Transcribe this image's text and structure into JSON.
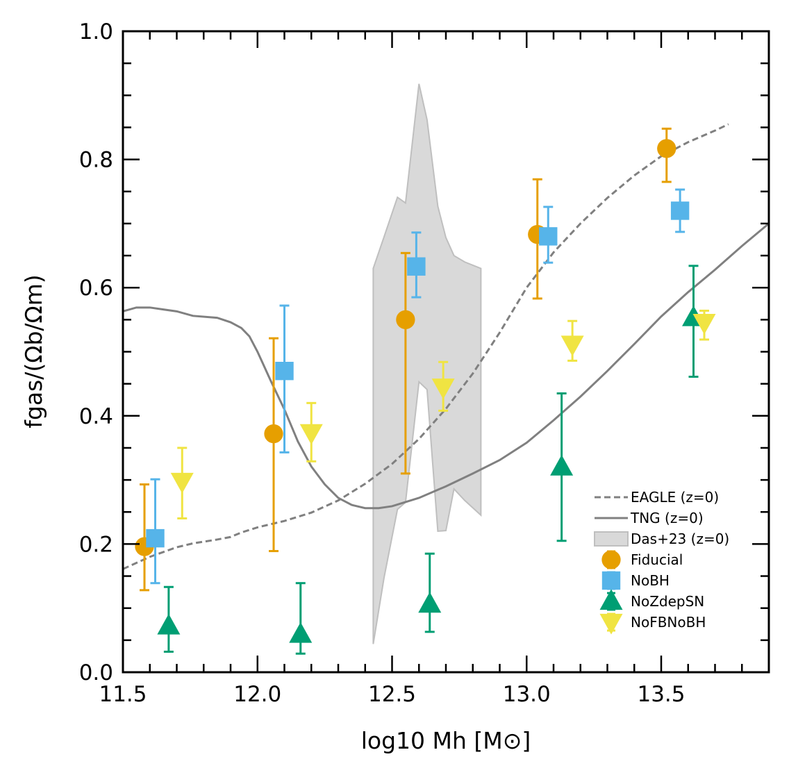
{
  "chart_data": {
    "type": "scatter",
    "xlabel": "log10 Mh [M⊙]",
    "ylabel": "fgas/(Ωb/Ωm)",
    "xlim": [
      11.5,
      13.9
    ],
    "ylim": [
      0.0,
      1.0
    ],
    "x_ticks": [
      "11.5",
      "12.0",
      "12.5",
      "13.0",
      "13.5"
    ],
    "y_ticks": [
      "0.0",
      "0.2",
      "0.4",
      "0.6",
      "0.8",
      "1.0"
    ],
    "grid": false,
    "legend_position": "lower-right",
    "series": [
      {
        "name": "Fiducial",
        "marker": "circle",
        "color": "#E69F00",
        "points": [
          {
            "x": 11.58,
            "y": 0.196,
            "lo": 0.128,
            "hi": 0.293
          },
          {
            "x": 12.06,
            "y": 0.372,
            "lo": 0.189,
            "hi": 0.521
          },
          {
            "x": 12.55,
            "y": 0.55,
            "lo": 0.31,
            "hi": 0.654
          },
          {
            "x": 13.04,
            "y": 0.683,
            "lo": 0.583,
            "hi": 0.769
          },
          {
            "x": 13.52,
            "y": 0.817,
            "lo": 0.765,
            "hi": 0.848
          }
        ]
      },
      {
        "name": "NoBH",
        "marker": "square",
        "color": "#56B4E9",
        "points": [
          {
            "x": 11.62,
            "y": 0.209,
            "lo": 0.139,
            "hi": 0.301
          },
          {
            "x": 12.1,
            "y": 0.47,
            "lo": 0.343,
            "hi": 0.572
          },
          {
            "x": 12.59,
            "y": 0.633,
            "lo": 0.585,
            "hi": 0.686
          },
          {
            "x": 13.08,
            "y": 0.68,
            "lo": 0.639,
            "hi": 0.726
          },
          {
            "x": 13.57,
            "y": 0.72,
            "lo": 0.687,
            "hi": 0.753
          }
        ]
      },
      {
        "name": "NoZdepSN",
        "marker": "triangle-up",
        "color": "#009E73",
        "points": [
          {
            "x": 11.67,
            "y": 0.072,
            "lo": 0.032,
            "hi": 0.133
          },
          {
            "x": 12.16,
            "y": 0.059,
            "lo": 0.029,
            "hi": 0.139
          },
          {
            "x": 12.64,
            "y": 0.106,
            "lo": 0.063,
            "hi": 0.185
          },
          {
            "x": 13.13,
            "y": 0.32,
            "lo": 0.205,
            "hi": 0.435
          },
          {
            "x": 13.62,
            "y": 0.553,
            "lo": 0.461,
            "hi": 0.634
          }
        ]
      },
      {
        "name": "NoFBNoBH",
        "marker": "triangle-down",
        "color": "#F0E442",
        "points": [
          {
            "x": 11.72,
            "y": 0.298,
            "lo": 0.24,
            "hi": 0.35
          },
          {
            "x": 12.2,
            "y": 0.374,
            "lo": 0.329,
            "hi": 0.42
          },
          {
            "x": 12.69,
            "y": 0.445,
            "lo": 0.408,
            "hi": 0.484
          },
          {
            "x": 13.17,
            "y": 0.512,
            "lo": 0.486,
            "hi": 0.548
          },
          {
            "x": 13.66,
            "y": 0.546,
            "lo": 0.519,
            "hi": 0.564
          }
        ]
      }
    ],
    "lines": [
      {
        "name": "EAGLE (z=0)",
        "style": "dashed",
        "color": "#808080",
        "x": [
          11.5,
          11.6,
          11.7,
          11.76,
          11.85,
          11.9,
          11.94,
          12.0,
          12.1,
          12.2,
          12.3,
          12.4,
          12.5,
          12.6,
          12.7,
          12.8,
          12.9,
          13.0,
          13.1,
          13.2,
          13.3,
          13.4,
          13.5,
          13.6,
          13.7,
          13.75
        ],
        "y": [
          0.161,
          0.18,
          0.195,
          0.201,
          0.207,
          0.211,
          0.218,
          0.226,
          0.236,
          0.249,
          0.268,
          0.294,
          0.325,
          0.364,
          0.411,
          0.466,
          0.53,
          0.6,
          0.655,
          0.7,
          0.74,
          0.775,
          0.805,
          0.827,
          0.845,
          0.855
        ]
      },
      {
        "name": "TNG (z=0)",
        "style": "solid",
        "color": "#808080",
        "x": [
          11.5,
          11.55,
          11.6,
          11.65,
          11.7,
          11.76,
          11.85,
          11.9,
          11.94,
          11.97,
          12.0,
          12.05,
          12.1,
          12.15,
          12.2,
          12.25,
          12.3,
          12.35,
          12.4,
          12.45,
          12.5,
          12.6,
          12.7,
          12.8,
          12.9,
          13.0,
          13.1,
          13.2,
          13.3,
          13.4,
          13.5,
          13.6,
          13.7,
          13.8,
          13.9
        ],
        "y": [
          0.563,
          0.569,
          0.569,
          0.566,
          0.563,
          0.556,
          0.553,
          0.546,
          0.537,
          0.524,
          0.5,
          0.454,
          0.41,
          0.36,
          0.321,
          0.293,
          0.272,
          0.261,
          0.256,
          0.256,
          0.259,
          0.272,
          0.29,
          0.31,
          0.331,
          0.358,
          0.393,
          0.43,
          0.47,
          0.512,
          0.555,
          0.593,
          0.628,
          0.665,
          0.7
        ]
      }
    ],
    "band": {
      "name": "Das+23 (z=0)",
      "color": "#BFBFBF",
      "x": [
        12.43,
        12.47,
        12.52,
        12.55,
        12.6,
        12.63,
        12.67,
        12.7,
        12.73,
        12.77,
        12.83
      ],
      "upper": [
        0.63,
        0.679,
        0.741,
        0.732,
        0.918,
        0.862,
        0.727,
        0.678,
        0.65,
        0.64,
        0.63
      ],
      "lower": [
        0.044,
        0.147,
        0.254,
        0.265,
        0.453,
        0.441,
        0.22,
        0.221,
        0.286,
        0.268,
        0.245
      ]
    }
  }
}
